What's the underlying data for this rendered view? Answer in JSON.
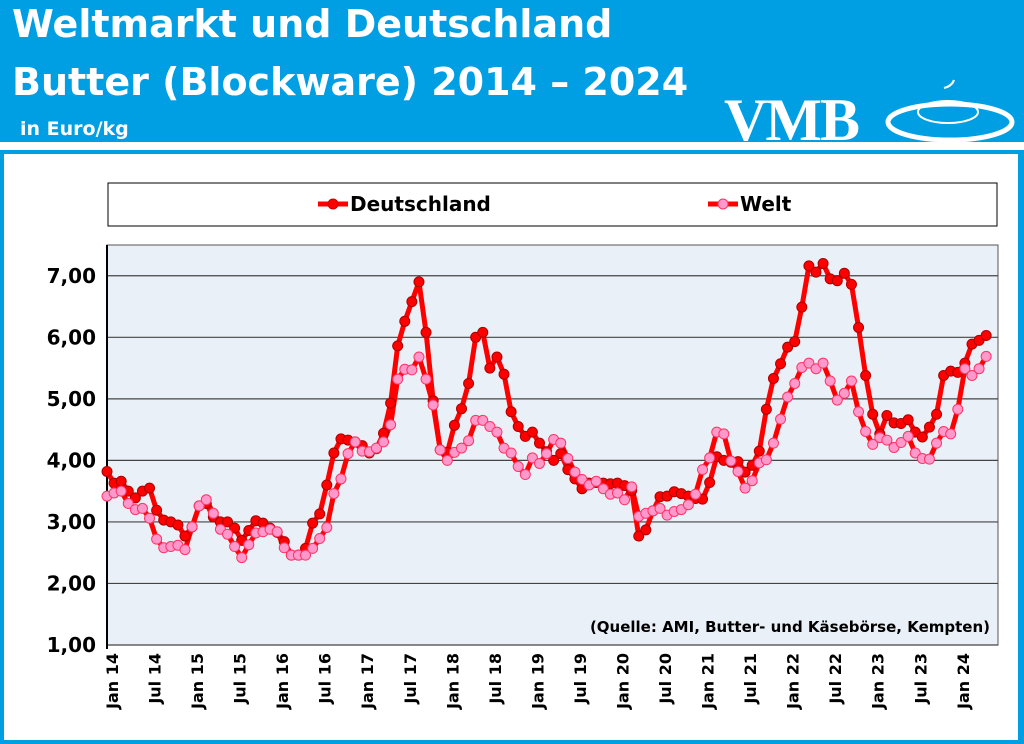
{
  "header": {
    "title_line1": "Weltmarkt und Deutschland",
    "title_line2": "Butter (Blockware) 2014 – 2024",
    "unit": "in Euro/kg",
    "logo_text": "VMB"
  },
  "colors": {
    "header_bg": "#009fe3",
    "deutschland": "#ff0000",
    "welt": "#ff99cc",
    "plot_bg": "#eaf0f7"
  },
  "chart_data": {
    "type": "line",
    "title": "",
    "ylim": [
      1,
      7.5
    ],
    "yticks": [
      "1,00",
      "2,00",
      "3,00",
      "4,00",
      "5,00",
      "6,00",
      "7,00"
    ],
    "ytick_values": [
      1,
      2,
      3,
      4,
      5,
      6,
      7
    ],
    "xtick_labels": [
      "Jan 14",
      "Jul 14",
      "Jan 15",
      "Jul 15",
      "Jan 16",
      "Jul 16",
      "Jan 17",
      "Jul 17",
      "Jan 18",
      "Jul 18",
      "Jan 19",
      "Jul 19",
      "Jan 20",
      "Jul 20",
      "Jan 21",
      "Jul 21",
      "Jan 22",
      "Jul 22",
      "Jan 23",
      "Jul 23",
      "Jan 24"
    ],
    "x_start": "Jan 14",
    "x_end": "May 24",
    "x_step": "month",
    "grid": true,
    "legend_position": "top",
    "annotation": "(Quelle: AMI, Butter- und Käsebörse, Kempten)",
    "series": [
      {
        "name": "Deutschland",
        "color": "#ff0000",
        "values": [
          3.82,
          3.63,
          3.66,
          3.5,
          3.39,
          3.5,
          3.55,
          3.19,
          3.03,
          3.0,
          2.95,
          2.77,
          2.92,
          3.26,
          3.3,
          3.08,
          3.0,
          3.0,
          2.9,
          2.7,
          2.86,
          3.02,
          2.98,
          2.9,
          2.83,
          2.68,
          2.46,
          2.46,
          2.57,
          2.98,
          3.13,
          3.6,
          4.12,
          4.35,
          4.33,
          4.3,
          4.24,
          4.12,
          4.19,
          4.44,
          4.93,
          5.86,
          6.26,
          6.58,
          6.9,
          6.08,
          4.97,
          4.17,
          4.13,
          4.57,
          4.84,
          5.25,
          6.0,
          6.08,
          5.5,
          5.68,
          5.4,
          4.79,
          4.55,
          4.39,
          4.46,
          4.28,
          4.14,
          4.0,
          4.11,
          3.85,
          3.7,
          3.54,
          3.63,
          3.64,
          3.63,
          3.62,
          3.63,
          3.59,
          3.51,
          2.77,
          2.87,
          3.18,
          3.41,
          3.42,
          3.49,
          3.46,
          3.42,
          3.38,
          3.37,
          3.64,
          4.06,
          4.0,
          3.97,
          3.98,
          3.81,
          3.92,
          4.15,
          4.83,
          5.33,
          5.57,
          5.84,
          5.93,
          6.49,
          7.16,
          7.06,
          7.2,
          6.95,
          6.92,
          7.04,
          6.86,
          6.16,
          5.38,
          4.75,
          4.43,
          4.73,
          4.61,
          4.6,
          4.66,
          4.46,
          4.38,
          4.54,
          4.75,
          5.38,
          5.45,
          5.43,
          5.58,
          5.89,
          5.95,
          6.03
        ]
      },
      {
        "name": "Welt",
        "color": "#ff99cc",
        "values": [
          3.42,
          3.47,
          3.5,
          3.3,
          3.2,
          3.22,
          3.06,
          2.72,
          2.58,
          2.6,
          2.62,
          2.55,
          2.92,
          3.26,
          3.36,
          3.14,
          2.88,
          2.8,
          2.6,
          2.42,
          2.63,
          2.82,
          2.84,
          2.88,
          2.84,
          2.58,
          2.46,
          2.46,
          2.46,
          2.57,
          2.73,
          2.91,
          3.46,
          3.7,
          4.11,
          4.3,
          4.15,
          4.14,
          4.2,
          4.3,
          4.58,
          5.32,
          5.48,
          5.47,
          5.68,
          5.32,
          4.9,
          4.17,
          4.0,
          4.13,
          4.2,
          4.32,
          4.65,
          4.65,
          4.55,
          4.46,
          4.2,
          4.12,
          3.9,
          3.77,
          4.04,
          3.95,
          4.11,
          4.34,
          4.28,
          4.03,
          3.81,
          3.69,
          3.6,
          3.66,
          3.54,
          3.45,
          3.47,
          3.36,
          3.57,
          3.09,
          3.14,
          3.18,
          3.22,
          3.11,
          3.17,
          3.2,
          3.28,
          3.45,
          3.85,
          4.04,
          4.46,
          4.43,
          3.99,
          3.82,
          3.55,
          3.67,
          3.96,
          4.01,
          4.28,
          4.67,
          5.03,
          5.25,
          5.51,
          5.58,
          5.49,
          5.58,
          5.29,
          4.98,
          5.09,
          5.29,
          4.79,
          4.47,
          4.26,
          4.37,
          4.33,
          4.21,
          4.29,
          4.39,
          4.12,
          4.03,
          4.02,
          4.28,
          4.47,
          4.43,
          4.83,
          5.49,
          5.38,
          5.49,
          5.69
        ]
      }
    ]
  }
}
